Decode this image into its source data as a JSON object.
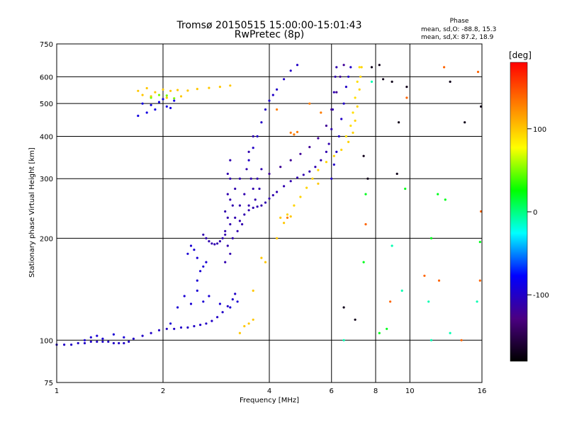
{
  "header": {
    "title": "Tromsø 20150515 15:00:00-15:01:43",
    "subtitle": "RwPretec (8p)"
  },
  "phase_stats": {
    "heading": "Phase",
    "line_o": "mean, sd,O: -88.8, 15.3",
    "line_x": "mean, sd,X: 87.2, 18.9"
  },
  "chart_data": {
    "type": "scatter",
    "title": "Tromsø 20150515 15:00:00-15:01:43",
    "subtitle": "RwPretec (8p)",
    "xlabel": "Frequency [MHz]",
    "ylabel": "Stationary phase Virtual Height [km]",
    "x_scale": "log",
    "y_scale": "log",
    "xlim": [
      1,
      16
    ],
    "ylim": [
      75,
      750
    ],
    "x_ticks": [
      1,
      2,
      4,
      6,
      8,
      10,
      16
    ],
    "x_tick_labels": [
      "1",
      "2",
      "4",
      "6",
      "8",
      "10",
      "16"
    ],
    "y_ticks": [
      75,
      100,
      200,
      300,
      400,
      500,
      600,
      750
    ],
    "y_tick_labels": [
      "75",
      "100",
      "200",
      "300",
      "400",
      "500",
      "600",
      "750"
    ],
    "grid": true,
    "color_scale": {
      "label": "[deg]",
      "min": -180,
      "max": 180,
      "ticks": [
        100,
        0,
        -100
      ],
      "tick_labels": [
        "100",
        "0",
        "-100"
      ],
      "stops": [
        "#000000",
        "#4b0082",
        "#0000ff",
        "#00ffff",
        "#00ff00",
        "#ffff00",
        "#ff8000",
        "#ff0000"
      ]
    },
    "series": [
      {
        "kind": "trace",
        "phase": -100,
        "points": [
          [
            1.0,
            97
          ],
          [
            1.05,
            97
          ],
          [
            1.1,
            97
          ],
          [
            1.15,
            98
          ],
          [
            1.2,
            98
          ],
          [
            1.25,
            99
          ],
          [
            1.3,
            99
          ],
          [
            1.35,
            99
          ],
          [
            1.4,
            99
          ],
          [
            1.45,
            98
          ],
          [
            1.5,
            98
          ],
          [
            1.55,
            98
          ],
          [
            1.6,
            99
          ],
          [
            1.65,
            101
          ],
          [
            1.75,
            103
          ],
          [
            1.85,
            105
          ],
          [
            1.95,
            107
          ],
          [
            2.05,
            108
          ],
          [
            2.15,
            108
          ],
          [
            2.25,
            109
          ],
          [
            2.35,
            109
          ],
          [
            2.45,
            110
          ],
          [
            2.55,
            111
          ],
          [
            2.65,
            112
          ],
          [
            2.75,
            114
          ],
          [
            2.85,
            117
          ],
          [
            2.95,
            121
          ],
          [
            3.05,
            126
          ],
          [
            3.15,
            132
          ],
          [
            3.2,
            137
          ]
        ]
      },
      {
        "kind": "trace",
        "phase": -110,
        "points": [
          [
            2.6,
            205
          ],
          [
            2.65,
            200
          ],
          [
            2.7,
            196
          ],
          [
            2.75,
            193
          ],
          [
            2.8,
            192
          ],
          [
            2.85,
            193
          ],
          [
            2.9,
            196
          ],
          [
            2.95,
            200
          ],
          [
            3.0,
            205
          ]
        ]
      },
      {
        "kind": "trace",
        "phase": -110,
        "points": [
          [
            3.3,
            225
          ],
          [
            3.4,
            235
          ],
          [
            3.5,
            242
          ],
          [
            3.6,
            246
          ],
          [
            3.7,
            248
          ],
          [
            3.8,
            250
          ],
          [
            3.9,
            255
          ],
          [
            4.0,
            262
          ],
          [
            4.1,
            268
          ],
          [
            4.2,
            274
          ],
          [
            4.4,
            285
          ],
          [
            4.6,
            295
          ],
          [
            4.8,
            302
          ],
          [
            5.0,
            308
          ],
          [
            5.2,
            315
          ],
          [
            5.4,
            325
          ],
          [
            5.6,
            340
          ],
          [
            5.8,
            360
          ],
          [
            5.9,
            380
          ],
          [
            6.0,
            420
          ],
          [
            6.05,
            480
          ],
          [
            6.1,
            540
          ],
          [
            6.15,
            600
          ],
          [
            6.2,
            640
          ]
        ]
      },
      {
        "kind": "trace",
        "phase": -100,
        "points": [
          [
            3.5,
            340
          ],
          [
            3.6,
            370
          ],
          [
            3.7,
            400
          ],
          [
            3.8,
            440
          ],
          [
            3.9,
            480
          ],
          [
            4.0,
            510
          ],
          [
            4.1,
            530
          ],
          [
            4.2,
            550
          ],
          [
            4.4,
            590
          ],
          [
            4.6,
            625
          ],
          [
            4.8,
            650
          ]
        ]
      },
      {
        "kind": "trace",
        "phase": -120,
        "points": [
          [
            4.0,
            310
          ],
          [
            4.3,
            325
          ],
          [
            4.6,
            340
          ],
          [
            4.9,
            355
          ],
          [
            5.2,
            372
          ],
          [
            5.5,
            395
          ],
          [
            5.8,
            430
          ],
          [
            6.0,
            480
          ],
          [
            6.2,
            540
          ],
          [
            6.35,
            600
          ],
          [
            6.5,
            650
          ]
        ]
      },
      {
        "kind": "trace",
        "phase": -100,
        "points": [
          [
            6.0,
            300
          ],
          [
            6.1,
            330
          ],
          [
            6.2,
            360
          ],
          [
            6.3,
            400
          ],
          [
            6.4,
            450
          ],
          [
            6.5,
            500
          ],
          [
            6.6,
            560
          ],
          [
            6.7,
            600
          ],
          [
            6.8,
            640
          ]
        ]
      },
      {
        "kind": "trace",
        "phase": 95,
        "points": [
          [
            4.5,
            235
          ],
          [
            4.7,
            250
          ],
          [
            4.9,
            265
          ],
          [
            5.1,
            282
          ],
          [
            5.3,
            300
          ],
          [
            5.5,
            318
          ],
          [
            5.8,
            336
          ],
          [
            6.1,
            350
          ],
          [
            6.4,
            365
          ],
          [
            6.7,
            385
          ],
          [
            6.9,
            410
          ],
          [
            7.0,
            445
          ],
          [
            7.1,
            490
          ],
          [
            7.2,
            550
          ],
          [
            7.25,
            600
          ],
          [
            7.3,
            640
          ]
        ]
      },
      {
        "kind": "trace",
        "phase": 90,
        "points": [
          [
            6.6,
            400
          ],
          [
            6.8,
            430
          ],
          [
            6.9,
            470
          ],
          [
            7.0,
            520
          ],
          [
            7.1,
            580
          ],
          [
            7.2,
            640
          ]
        ]
      },
      {
        "kind": "cluster",
        "phase": 100,
        "points": [
          [
            1.7,
            545
          ],
          [
            1.8,
            555
          ],
          [
            1.9,
            540
          ],
          [
            2.0,
            550
          ],
          [
            2.1,
            545
          ],
          [
            2.2,
            548
          ],
          [
            2.35,
            546
          ],
          [
            2.5,
            552
          ],
          [
            2.7,
            556
          ],
          [
            2.9,
            560
          ],
          [
            3.1,
            565
          ],
          [
            1.75,
            530
          ],
          [
            1.85,
            525
          ],
          [
            2.05,
            520
          ],
          [
            2.25,
            525
          ]
        ]
      },
      {
        "kind": "cluster",
        "phase": -90,
        "points": [
          [
            1.75,
            500
          ],
          [
            1.85,
            495
          ],
          [
            1.95,
            505
          ],
          [
            2.05,
            490
          ],
          [
            2.15,
            510
          ],
          [
            1.8,
            470
          ],
          [
            1.9,
            480
          ],
          [
            2.0,
            515
          ],
          [
            1.7,
            460
          ],
          [
            2.1,
            485
          ]
        ]
      },
      {
        "kind": "cluster",
        "phase": 50,
        "points": [
          [
            1.85,
            520
          ],
          [
            1.95,
            530
          ],
          [
            2.05,
            528
          ],
          [
            2.15,
            518
          ]
        ]
      },
      {
        "kind": "spread",
        "phase": -110,
        "points": [
          [
            3.0,
            170
          ],
          [
            3.0,
            210
          ],
          [
            3.0,
            240
          ],
          [
            3.05,
            190
          ],
          [
            3.05,
            230
          ],
          [
            3.05,
            270
          ],
          [
            3.05,
            310
          ],
          [
            3.1,
            180
          ],
          [
            3.1,
            220
          ],
          [
            3.1,
            260
          ],
          [
            3.1,
            300
          ],
          [
            3.1,
            340
          ],
          [
            3.15,
            200
          ],
          [
            3.15,
            250
          ],
          [
            3.2,
            230
          ],
          [
            3.2,
            280
          ],
          [
            3.25,
            210
          ],
          [
            3.3,
            250
          ],
          [
            3.3,
            300
          ],
          [
            3.35,
            220
          ],
          [
            3.4,
            270
          ],
          [
            3.45,
            320
          ],
          [
            3.5,
            250
          ],
          [
            3.5,
            360
          ],
          [
            3.55,
            300
          ],
          [
            3.6,
            280
          ],
          [
            3.6,
            400
          ],
          [
            3.65,
            260
          ],
          [
            3.7,
            300
          ],
          [
            3.75,
            280
          ],
          [
            3.8,
            320
          ]
        ]
      },
      {
        "kind": "spread",
        "phase": -95,
        "points": [
          [
            2.5,
            150
          ],
          [
            2.55,
            160
          ],
          [
            2.6,
            165
          ],
          [
            2.65,
            170
          ],
          [
            2.35,
            180
          ],
          [
            2.4,
            190
          ],
          [
            2.45,
            185
          ],
          [
            2.5,
            175
          ],
          [
            2.2,
            125
          ],
          [
            2.3,
            135
          ],
          [
            2.4,
            128
          ],
          [
            2.5,
            140
          ],
          [
            2.6,
            130
          ],
          [
            2.7,
            135
          ],
          [
            2.9,
            128
          ],
          [
            3.1,
            125
          ],
          [
            3.25,
            130
          ],
          [
            2.1,
            112
          ],
          [
            1.3,
            103
          ],
          [
            1.35,
            101
          ],
          [
            1.45,
            104
          ],
          [
            1.55,
            102
          ],
          [
            1.2,
            100
          ],
          [
            1.25,
            102
          ]
        ]
      },
      {
        "kind": "scattered",
        "phase": 100,
        "points": [
          [
            4.3,
            230
          ],
          [
            4.4,
            222
          ],
          [
            4.6,
            232
          ],
          [
            3.8,
            175
          ],
          [
            3.9,
            170
          ],
          [
            3.6,
            115
          ],
          [
            3.5,
            112
          ],
          [
            3.4,
            110
          ],
          [
            3.3,
            105
          ],
          [
            3.6,
            140
          ],
          [
            4.2,
            200
          ],
          [
            5.5,
            290
          ]
        ]
      },
      {
        "kind": "scattered",
        "phase": 130,
        "points": [
          [
            4.6,
            410
          ],
          [
            4.7,
            405
          ],
          [
            4.8,
            412
          ],
          [
            4.5,
            230
          ],
          [
            5.2,
            500
          ],
          [
            5.6,
            470
          ],
          [
            4.2,
            480
          ]
        ]
      },
      {
        "kind": "scattered",
        "phase": -170,
        "points": [
          [
            6.5,
            125
          ],
          [
            7.0,
            115
          ],
          [
            7.4,
            350
          ],
          [
            8.4,
            590
          ],
          [
            8.9,
            580
          ],
          [
            9.3,
            440
          ],
          [
            9.8,
            560
          ],
          [
            7.8,
            640
          ],
          [
            8.2,
            650
          ],
          [
            13.0,
            580
          ],
          [
            14.3,
            440
          ],
          [
            15.9,
            490
          ],
          [
            7.6,
            300
          ],
          [
            9.2,
            310
          ]
        ]
      },
      {
        "kind": "scattered",
        "phase": 20,
        "points": [
          [
            7.5,
            270
          ],
          [
            8.6,
            108
          ],
          [
            12.0,
            270
          ],
          [
            11.5,
            200
          ],
          [
            7.4,
            170
          ],
          [
            8.2,
            105
          ],
          [
            9.7,
            280
          ],
          [
            12.6,
            260
          ],
          [
            15.8,
            195
          ]
        ]
      },
      {
        "kind": "scattered",
        "phase": 140,
        "points": [
          [
            7.5,
            220
          ],
          [
            11.0,
            155
          ],
          [
            12.1,
            150
          ],
          [
            8.8,
            130
          ],
          [
            14.0,
            100
          ],
          [
            15.8,
            150
          ],
          [
            15.9,
            240
          ],
          [
            12.5,
            640
          ],
          [
            15.6,
            620
          ],
          [
            9.8,
            520
          ]
        ]
      },
      {
        "kind": "scattered",
        "phase": -10,
        "points": [
          [
            8.9,
            190
          ],
          [
            9.5,
            140
          ],
          [
            13.0,
            105
          ],
          [
            11.5,
            100
          ],
          [
            15.5,
            130
          ],
          [
            7.8,
            580
          ],
          [
            6.5,
            100
          ],
          [
            11.3,
            130
          ]
        ]
      }
    ]
  }
}
